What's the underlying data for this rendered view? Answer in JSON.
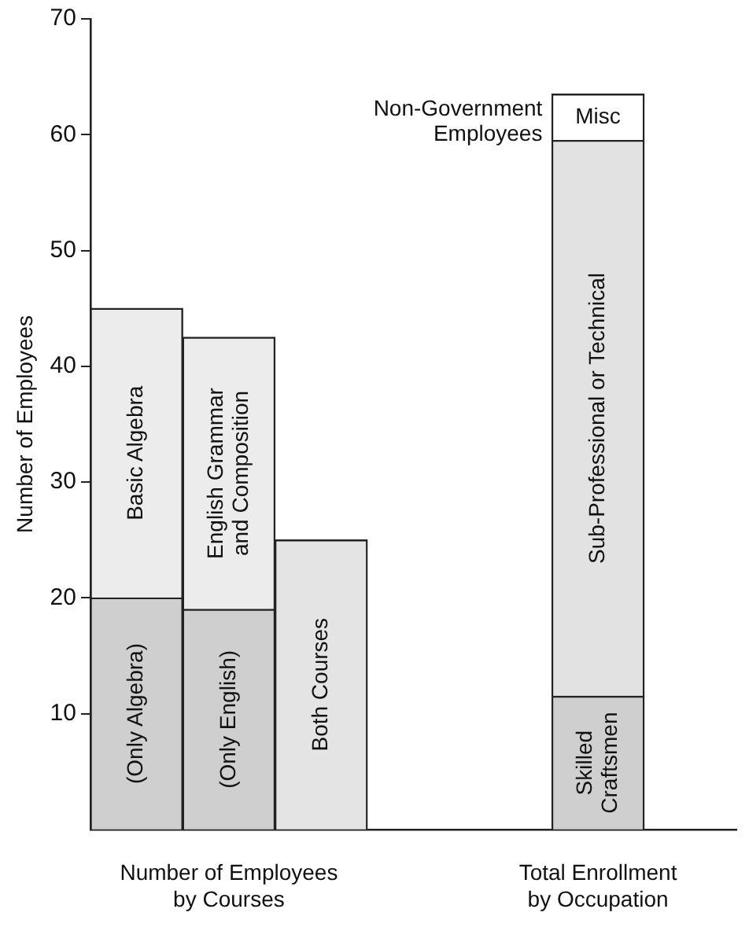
{
  "chart_data": {
    "type": "bar",
    "stacked": true,
    "ylabel": "Number of Employees",
    "categories": [
      null,
      null,
      null,
      null,
      null,
      null,
      null
    ],
    "series": [
      {
        "name": "(Only Algebra)",
        "color": "#cfcfcf",
        "values": [
          20,
          null,
          null,
          null,
          null,
          null,
          null
        ]
      },
      {
        "name": "Basic Algebra",
        "color": "#ececec",
        "values": [
          25,
          null,
          null,
          null,
          null,
          null,
          null
        ]
      },
      {
        "name": "(Only English)",
        "color": "#cfcfcf",
        "values": [
          null,
          19,
          null,
          null,
          null,
          null,
          null
        ]
      },
      {
        "name": "English Grammar and Composition",
        "color": "#ececec",
        "values": [
          null,
          23.5,
          null,
          null,
          null,
          null,
          null
        ]
      },
      {
        "name": "Both Courses",
        "color": "#e4e4e4",
        "values": [
          null,
          null,
          25,
          null,
          null,
          null,
          null
        ]
      },
      {
        "name": "Skilled Craftsmen",
        "color": "#cfcfcf",
        "values": [
          null,
          null,
          null,
          null,
          null,
          11.5,
          null
        ]
      },
      {
        "name": "Sub-Professional or Technical",
        "color": "#e2e2e2",
        "values": [
          null,
          null,
          null,
          null,
          null,
          48,
          null
        ]
      },
      {
        "name": "Misc",
        "color": "#ffffff",
        "values": [
          null,
          null,
          null,
          null,
          null,
          4,
          null
        ]
      }
    ],
    "ylim": [
      0,
      70
    ],
    "yticks": [
      10,
      20,
      30,
      40,
      50,
      60,
      70
    ],
    "grid": false,
    "legend": false,
    "annotations": [
      "Number of Employees\nby Courses",
      "Total Enrollment\nby Occupation",
      "Non-Government\nEmployees"
    ]
  }
}
